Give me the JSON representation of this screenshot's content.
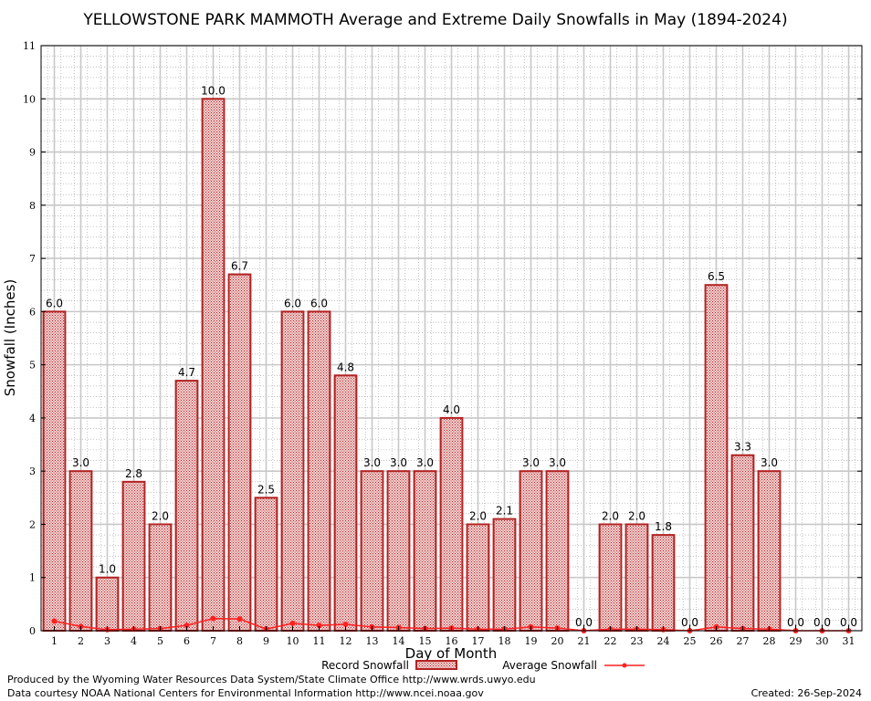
{
  "chart_data": {
    "type": "bar",
    "title": "YELLOWSTONE PARK MAMMOTH Average and Extreme Daily Snowfalls in May (1894-2024)",
    "xlabel": "Day of Month",
    "ylabel": "Snowfall (Inches)",
    "ylim": [
      0,
      11
    ],
    "yticks": [
      0,
      1,
      2,
      3,
      4,
      5,
      6,
      7,
      8,
      9,
      10,
      11
    ],
    "grid": true,
    "categories": [
      "1",
      "2",
      "3",
      "4",
      "5",
      "6",
      "7",
      "8",
      "9",
      "10",
      "11",
      "12",
      "13",
      "14",
      "15",
      "16",
      "17",
      "18",
      "19",
      "20",
      "21",
      "22",
      "23",
      "24",
      "25",
      "26",
      "27",
      "28",
      "29",
      "30",
      "31"
    ],
    "series": [
      {
        "name": "Record Snowfall",
        "kind": "bar",
        "color": "#b22222",
        "values": [
          6.0,
          3.0,
          1.0,
          2.8,
          2.0,
          4.7,
          10.0,
          6.7,
          2.5,
          6.0,
          6.0,
          4.8,
          3.0,
          3.0,
          3.0,
          4.0,
          2.0,
          2.1,
          3.0,
          3.0,
          0.0,
          2.0,
          2.0,
          1.8,
          0.0,
          6.5,
          3.3,
          3.0,
          0.0,
          0.0,
          0.0
        ],
        "labels": [
          "6.0",
          "3.0",
          "1.0",
          "2.8",
          "2.0",
          "4.7",
          "10.0",
          "6.7",
          "2.5",
          "6.0",
          "6.0",
          "4.8",
          "3.0",
          "3.0",
          "3.0",
          "4.0",
          "2.0",
          "2.1",
          "3.0",
          "3.0",
          "0.0",
          "2.0",
          "2.0",
          "1.8",
          "0.0",
          "6.5",
          "3.3",
          "3.0",
          "0.0",
          "0.0",
          "0.0"
        ]
      },
      {
        "name": "Average Snowfall",
        "kind": "line",
        "color": "#ff2020",
        "values": [
          0.18,
          0.08,
          0.02,
          0.03,
          0.04,
          0.1,
          0.23,
          0.22,
          0.03,
          0.14,
          0.1,
          0.12,
          0.07,
          0.06,
          0.04,
          0.05,
          0.03,
          0.03,
          0.07,
          0.05,
          0.0,
          0.03,
          0.03,
          0.02,
          0.0,
          0.07,
          0.04,
          0.03,
          0.0,
          0.0,
          0.0
        ]
      }
    ],
    "legend": {
      "record_label": "Record Snowfall",
      "average_label": "Average Snowfall",
      "placement": "bottom-center"
    }
  },
  "footer": {
    "produced_by": "Produced by the Wyoming Water Resources Data System/State Climate Office http://www.wrds.uwyo.edu",
    "courtesy": "Data courtesy NOAA National Centers for Environmental Information http://www.ncei.noaa.gov",
    "created": "Created:  26-Sep-2024"
  }
}
